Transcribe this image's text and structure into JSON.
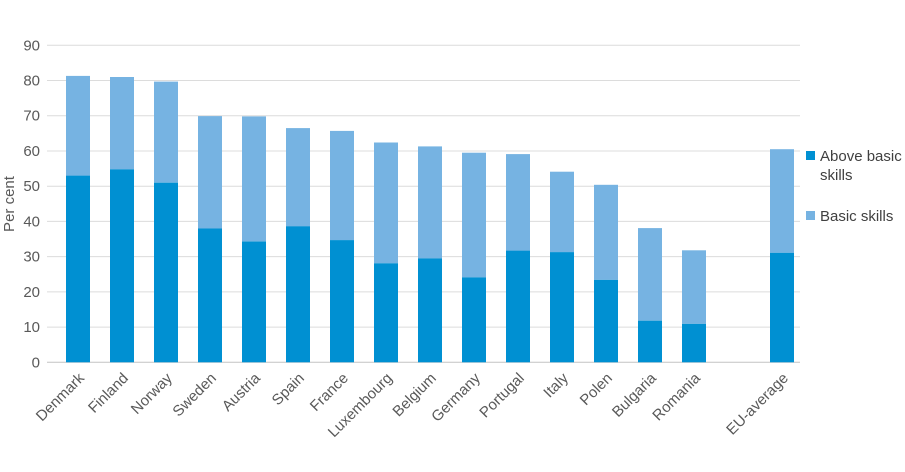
{
  "chart_data": {
    "type": "bar",
    "stacked": true,
    "title": "",
    "ylabel": "Per cent",
    "xlabel": "",
    "ylim": [
      0,
      90
    ],
    "yticks": [
      0,
      10,
      20,
      30,
      40,
      50,
      60,
      70,
      80,
      90
    ],
    "grid": true,
    "legend_position": "right",
    "gap_before_last": true,
    "categories": [
      "Denmark",
      "Finland",
      "Norway",
      "Sweden",
      "Austria",
      "Spain",
      "France",
      "Luxembourg",
      "Belgium",
      "Germany",
      "Portugal",
      "Italy",
      "Polen",
      "Bulgaria",
      "Romania",
      "EU-average"
    ],
    "series": [
      {
        "name": "Above basic skills",
        "color": "#0090d2",
        "values": [
          53.0,
          54.8,
          51.0,
          38.0,
          34.3,
          38.6,
          34.7,
          28.1,
          29.5,
          24.1,
          31.7,
          31.3,
          23.4,
          11.8,
          10.9,
          31.1
        ]
      },
      {
        "name": "Basic skills",
        "color": "#76b3e2",
        "values": [
          28.3,
          26.2,
          28.7,
          31.9,
          35.5,
          27.9,
          31.0,
          34.3,
          31.8,
          35.4,
          27.4,
          22.8,
          27.0,
          26.3,
          20.9,
          29.4
        ]
      }
    ],
    "colors": {
      "grid": "#dcdcdc",
      "axis_line": "#c4c4c4",
      "tick_label": "#595959",
      "axis_title": "#595959",
      "legend_text": "#404040"
    }
  }
}
